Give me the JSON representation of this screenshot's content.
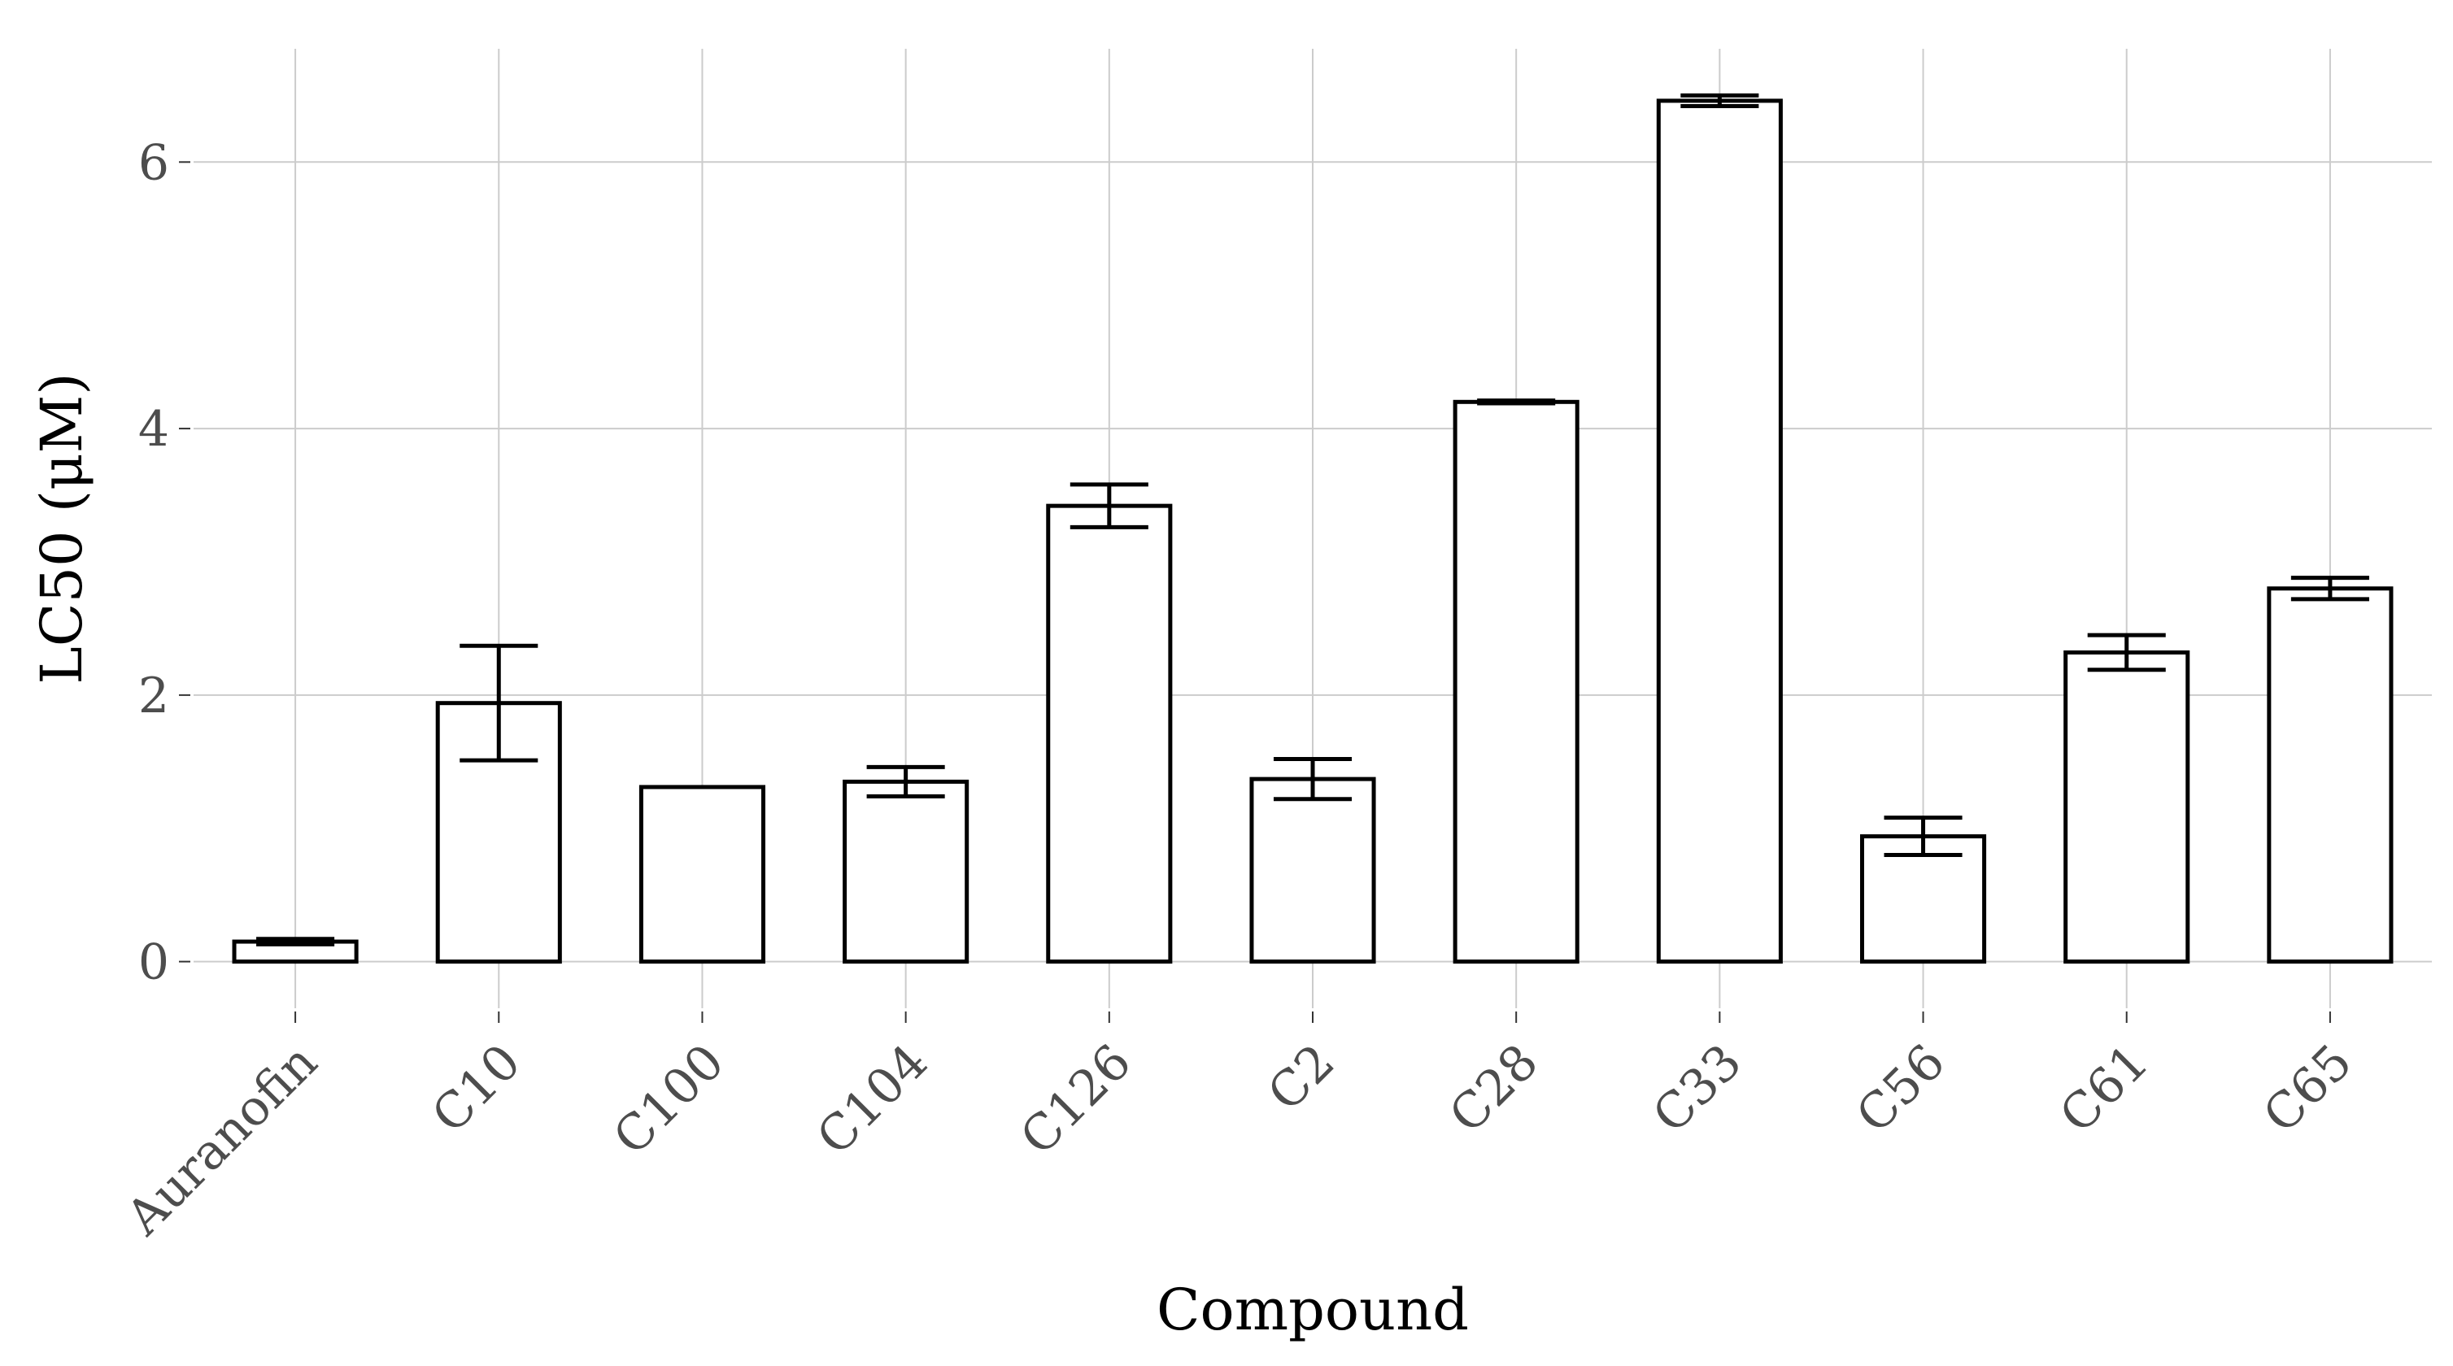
{
  "chart_data": {
    "type": "bar",
    "xlabel": "Compound",
    "ylabel": "LC50 (μM)",
    "categories": [
      "Auranofin",
      "C10",
      "C100",
      "C104",
      "C126",
      "C2",
      "C28",
      "C33",
      "C56",
      "C61",
      "C65"
    ],
    "values": [
      0.15,
      1.94,
      1.31,
      1.35,
      3.42,
      1.37,
      4.2,
      6.46,
      0.94,
      2.32,
      2.8
    ],
    "errors": [
      0.02,
      0.43,
      0.0,
      0.11,
      0.16,
      0.15,
      0.01,
      0.04,
      0.14,
      0.13,
      0.08
    ],
    "ylim": [
      -0.35,
      6.85
    ],
    "y_ticks": [
      0,
      2,
      4,
      6
    ],
    "grid": true,
    "bar_fill": "#ffffff",
    "bar_stroke": "#000000",
    "grid_color": "#cccccc"
  }
}
